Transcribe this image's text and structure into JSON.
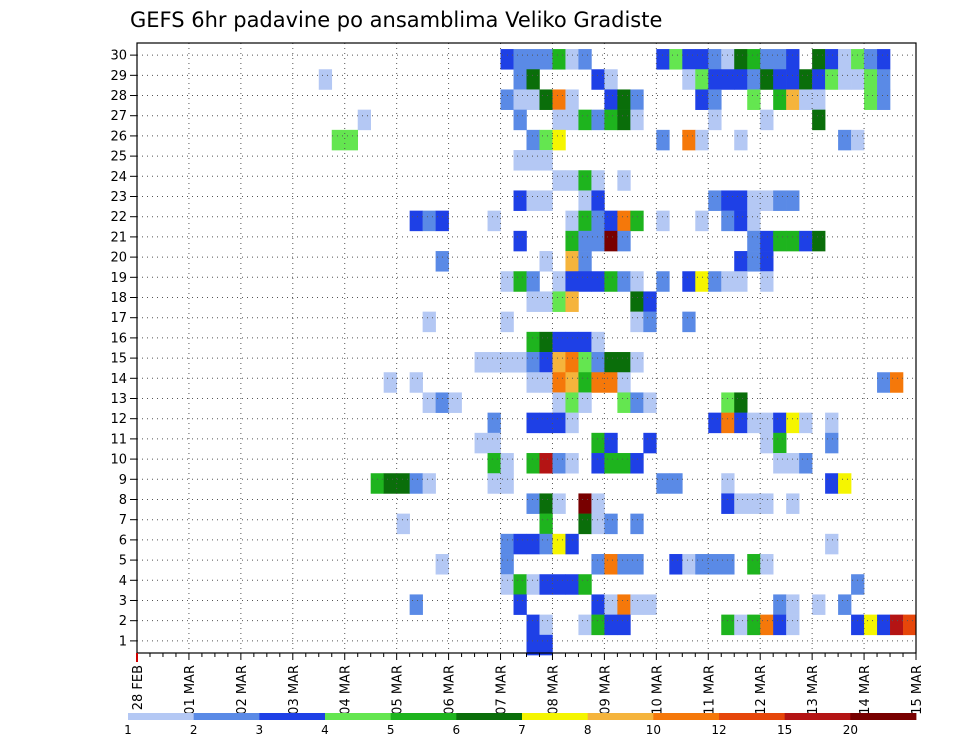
{
  "chart_data": {
    "type": "heatmap",
    "title": "GEFS 6hr padavine po ansamblima Veliko Gradiste",
    "xlabel": "",
    "ylabel": "",
    "x_tick_labels": [
      "28 FEB",
      "01 MAR",
      "02 MAR",
      "03 MAR",
      "04 MAR",
      "05 MAR",
      "06 MAR",
      "07 MAR",
      "08 MAR",
      "09 MAR",
      "10 MAR",
      "11 MAR",
      "12 MAR",
      "13 MAR",
      "14 MAR",
      "15 MAR"
    ],
    "y_tick_labels": [
      1,
      2,
      3,
      4,
      5,
      6,
      7,
      8,
      9,
      10,
      11,
      12,
      13,
      14,
      15,
      16,
      17,
      18,
      19,
      20,
      21,
      22,
      23,
      24,
      25,
      26,
      27,
      28,
      29,
      30
    ],
    "x_unit": "6-hour step from 28 FEB 00Z (4 steps per day)",
    "grid": true,
    "legend": "bottom",
    "color_scale": {
      "thresholds": [
        "1",
        "2",
        "3",
        "4",
        "5",
        "6",
        "7",
        "8",
        "10",
        "12",
        "15",
        "20"
      ],
      "colors": [
        "#b4c8f4",
        "#5a8ae6",
        "#1e40e6",
        "#64e650",
        "#1eb41e",
        "#0a6e0a",
        "#f5f500",
        "#f5b43c",
        "#f5780a",
        "#e6460a",
        "#b41414",
        "#780000"
      ]
    },
    "cells": [
      [
        0,
        29,
        2
      ],
      [
        1,
        29,
        1
      ],
      [
        2,
        29,
        1
      ],
      [
        3,
        29,
        1
      ],
      [
        4,
        29,
        4
      ],
      [
        5,
        29,
        0
      ],
      [
        6,
        29,
        1
      ],
      [
        12,
        29,
        2
      ],
      [
        13,
        29,
        3
      ],
      [
        14,
        29,
        2
      ],
      [
        15,
        29,
        2
      ],
      [
        16,
        29,
        1
      ],
      [
        17,
        29,
        0
      ],
      [
        18,
        29,
        5
      ],
      [
        19,
        29,
        4
      ],
      [
        20,
        29,
        1
      ],
      [
        21,
        29,
        1
      ],
      [
        22,
        29,
        2
      ],
      [
        24,
        29,
        5
      ],
      [
        25,
        29,
        2
      ],
      [
        26,
        29,
        0
      ],
      [
        27,
        29,
        3
      ],
      [
        28,
        29,
        1
      ],
      [
        29,
        29,
        2
      ],
      [
        -14,
        28,
        0
      ],
      [
        1,
        28,
        1
      ],
      [
        2,
        28,
        5
      ],
      [
        7,
        28,
        2
      ],
      [
        8,
        28,
        0
      ],
      [
        14,
        28,
        0
      ],
      [
        15,
        28,
        3
      ],
      [
        16,
        28,
        2
      ],
      [
        17,
        28,
        2
      ],
      [
        18,
        28,
        2
      ],
      [
        19,
        28,
        1
      ],
      [
        20,
        28,
        5
      ],
      [
        21,
        28,
        2
      ],
      [
        22,
        28,
        2
      ],
      [
        23,
        28,
        5
      ],
      [
        24,
        28,
        2
      ],
      [
        25,
        28,
        3
      ],
      [
        26,
        28,
        0
      ],
      [
        27,
        28,
        0
      ],
      [
        28,
        28,
        3
      ],
      [
        29,
        28,
        1
      ],
      [
        0,
        27,
        1
      ],
      [
        1,
        27,
        0
      ],
      [
        2,
        27,
        0
      ],
      [
        3,
        27,
        5
      ],
      [
        4,
        27,
        8
      ],
      [
        5,
        27,
        0
      ],
      [
        8,
        27,
        2
      ],
      [
        9,
        27,
        5
      ],
      [
        10,
        27,
        1
      ],
      [
        15,
        27,
        2
      ],
      [
        16,
        27,
        1
      ],
      [
        19,
        27,
        3
      ],
      [
        21,
        27,
        4
      ],
      [
        22,
        27,
        7
      ],
      [
        23,
        27,
        0
      ],
      [
        24,
        27,
        0
      ],
      [
        28,
        27,
        3
      ],
      [
        29,
        27,
        1
      ],
      [
        -11,
        26,
        0
      ],
      [
        1,
        26,
        1
      ],
      [
        4,
        26,
        0
      ],
      [
        5,
        26,
        0
      ],
      [
        6,
        26,
        4
      ],
      [
        7,
        26,
        1
      ],
      [
        8,
        26,
        4
      ],
      [
        9,
        26,
        5
      ],
      [
        10,
        26,
        0
      ],
      [
        16,
        26,
        0
      ],
      [
        20,
        26,
        0
      ],
      [
        24,
        26,
        5
      ],
      [
        -13,
        25,
        3
      ],
      [
        -12,
        25,
        3
      ],
      [
        2,
        25,
        1
      ],
      [
        3,
        25,
        3
      ],
      [
        4,
        25,
        6
      ],
      [
        12,
        25,
        1
      ],
      [
        14,
        25,
        8
      ],
      [
        15,
        25,
        0
      ],
      [
        18,
        25,
        0
      ],
      [
        26,
        25,
        1
      ],
      [
        27,
        25,
        0
      ],
      [
        1,
        24,
        0
      ],
      [
        2,
        24,
        0
      ],
      [
        3,
        24,
        0
      ],
      [
        4,
        23,
        0
      ],
      [
        5,
        23,
        0
      ],
      [
        6,
        23,
        4
      ],
      [
        7,
        23,
        0
      ],
      [
        9,
        23,
        0
      ],
      [
        1,
        22,
        2
      ],
      [
        2,
        22,
        0
      ],
      [
        3,
        22,
        0
      ],
      [
        6,
        22,
        0
      ],
      [
        7,
        22,
        2
      ],
      [
        16,
        22,
        1
      ],
      [
        17,
        22,
        2
      ],
      [
        18,
        22,
        2
      ],
      [
        19,
        22,
        0
      ],
      [
        20,
        22,
        0
      ],
      [
        21,
        22,
        1
      ],
      [
        22,
        22,
        1
      ],
      [
        -7,
        21,
        2
      ],
      [
        -6,
        21,
        1
      ],
      [
        -5,
        21,
        2
      ],
      [
        -1,
        21,
        0
      ],
      [
        5,
        21,
        0
      ],
      [
        6,
        21,
        4
      ],
      [
        7,
        21,
        1
      ],
      [
        8,
        21,
        2
      ],
      [
        9,
        21,
        8
      ],
      [
        10,
        21,
        4
      ],
      [
        12,
        21,
        0
      ],
      [
        15,
        21,
        0
      ],
      [
        17,
        21,
        1
      ],
      [
        18,
        21,
        2
      ],
      [
        19,
        21,
        0
      ],
      [
        1,
        20,
        2
      ],
      [
        5,
        20,
        4
      ],
      [
        6,
        20,
        1
      ],
      [
        7,
        20,
        1
      ],
      [
        8,
        20,
        11
      ],
      [
        9,
        20,
        1
      ],
      [
        19,
        20,
        1
      ],
      [
        20,
        20,
        2
      ],
      [
        21,
        20,
        4
      ],
      [
        22,
        20,
        4
      ],
      [
        23,
        20,
        2
      ],
      [
        24,
        20,
        5
      ],
      [
        -5,
        19,
        1
      ],
      [
        3,
        19,
        0
      ],
      [
        5,
        19,
        7
      ],
      [
        6,
        19,
        1
      ],
      [
        18,
        19,
        2
      ],
      [
        19,
        19,
        1
      ],
      [
        20,
        19,
        2
      ],
      [
        0,
        18,
        0
      ],
      [
        1,
        18,
        4
      ],
      [
        2,
        18,
        1
      ],
      [
        4,
        18,
        0
      ],
      [
        5,
        18,
        2
      ],
      [
        6,
        18,
        2
      ],
      [
        7,
        18,
        2
      ],
      [
        8,
        18,
        4
      ],
      [
        9,
        18,
        1
      ],
      [
        10,
        18,
        0
      ],
      [
        12,
        18,
        1
      ],
      [
        14,
        18,
        2
      ],
      [
        15,
        18,
        6
      ],
      [
        16,
        18,
        1
      ],
      [
        17,
        18,
        0
      ],
      [
        18,
        18,
        0
      ],
      [
        20,
        18,
        0
      ],
      [
        2,
        17,
        0
      ],
      [
        3,
        17,
        0
      ],
      [
        4,
        17,
        3
      ],
      [
        5,
        17,
        7
      ],
      [
        10,
        17,
        5
      ],
      [
        11,
        17,
        2
      ],
      [
        -6,
        16,
        0
      ],
      [
        0,
        16,
        0
      ],
      [
        10,
        16,
        0
      ],
      [
        11,
        16,
        1
      ],
      [
        14,
        16,
        1
      ],
      [
        2,
        15,
        4
      ],
      [
        3,
        15,
        5
      ],
      [
        4,
        15,
        2
      ],
      [
        5,
        15,
        2
      ],
      [
        6,
        15,
        2
      ],
      [
        7,
        15,
        0
      ],
      [
        -2,
        14,
        0
      ],
      [
        -1,
        14,
        0
      ],
      [
        0,
        14,
        0
      ],
      [
        1,
        14,
        0
      ],
      [
        2,
        14,
        1
      ],
      [
        3,
        14,
        2
      ],
      [
        4,
        14,
        7
      ],
      [
        5,
        14,
        8
      ],
      [
        6,
        14,
        3
      ],
      [
        7,
        14,
        1
      ],
      [
        8,
        14,
        5
      ],
      [
        9,
        14,
        5
      ],
      [
        10,
        14,
        0
      ],
      [
        -9,
        13,
        0
      ],
      [
        -7,
        13,
        0
      ],
      [
        2,
        13,
        0
      ],
      [
        3,
        13,
        0
      ],
      [
        4,
        13,
        8
      ],
      [
        5,
        13,
        7
      ],
      [
        6,
        13,
        4
      ],
      [
        7,
        13,
        8
      ],
      [
        8,
        13,
        8
      ],
      [
        9,
        13,
        0
      ],
      [
        29,
        13,
        1
      ],
      [
        30,
        13,
        8
      ],
      [
        -6,
        12,
        0
      ],
      [
        -5,
        12,
        1
      ],
      [
        -4,
        12,
        0
      ],
      [
        4,
        12,
        0
      ],
      [
        5,
        12,
        3
      ],
      [
        6,
        12,
        0
      ],
      [
        9,
        12,
        3
      ],
      [
        10,
        12,
        1
      ],
      [
        11,
        12,
        0
      ],
      [
        17,
        12,
        3
      ],
      [
        18,
        12,
        5
      ],
      [
        -1,
        11,
        1
      ],
      [
        2,
        11,
        2
      ],
      [
        3,
        11,
        2
      ],
      [
        4,
        11,
        2
      ],
      [
        5,
        11,
        0
      ],
      [
        16,
        11,
        2
      ],
      [
        17,
        11,
        8
      ],
      [
        18,
        11,
        2
      ],
      [
        19,
        11,
        0
      ],
      [
        20,
        11,
        0
      ],
      [
        21,
        11,
        2
      ],
      [
        22,
        11,
        6
      ],
      [
        23,
        11,
        0
      ],
      [
        25,
        11,
        0
      ],
      [
        -2,
        10,
        0
      ],
      [
        -1,
        10,
        0
      ],
      [
        7,
        10,
        4
      ],
      [
        8,
        10,
        2
      ],
      [
        11,
        10,
        2
      ],
      [
        20,
        10,
        0
      ],
      [
        21,
        10,
        4
      ],
      [
        25,
        10,
        1
      ],
      [
        -1,
        9,
        4
      ],
      [
        0,
        9,
        0
      ],
      [
        2,
        9,
        4
      ],
      [
        3,
        9,
        10
      ],
      [
        4,
        9,
        1
      ],
      [
        5,
        9,
        0
      ],
      [
        7,
        9,
        2
      ],
      [
        8,
        9,
        4
      ],
      [
        9,
        9,
        4
      ],
      [
        10,
        9,
        2
      ],
      [
        21,
        9,
        0
      ],
      [
        22,
        9,
        0
      ],
      [
        23,
        9,
        1
      ],
      [
        -10,
        8,
        4
      ],
      [
        -9,
        8,
        5
      ],
      [
        -8,
        8,
        5
      ],
      [
        -7,
        8,
        1
      ],
      [
        -6,
        8,
        0
      ],
      [
        -1,
        8,
        0
      ],
      [
        0,
        8,
        0
      ],
      [
        12,
        8,
        1
      ],
      [
        13,
        8,
        1
      ],
      [
        17,
        8,
        0
      ],
      [
        25,
        8,
        2
      ],
      [
        26,
        8,
        6
      ],
      [
        2,
        7,
        1
      ],
      [
        3,
        7,
        5
      ],
      [
        4,
        7,
        0
      ],
      [
        6,
        7,
        11
      ],
      [
        7,
        7,
        0
      ],
      [
        17,
        7,
        2
      ],
      [
        18,
        7,
        0
      ],
      [
        19,
        7,
        0
      ],
      [
        20,
        7,
        0
      ],
      [
        22,
        7,
        0
      ],
      [
        -8,
        6,
        0
      ],
      [
        3,
        6,
        4
      ],
      [
        6,
        6,
        5
      ],
      [
        7,
        6,
        0
      ],
      [
        8,
        6,
        1
      ],
      [
        10,
        6,
        1
      ],
      [
        0,
        5,
        1
      ],
      [
        1,
        5,
        2
      ],
      [
        2,
        5,
        2
      ],
      [
        3,
        5,
        1
      ],
      [
        4,
        5,
        6
      ],
      [
        5,
        5,
        2
      ],
      [
        25,
        5,
        0
      ],
      [
        -5,
        4,
        0
      ],
      [
        0,
        4,
        1
      ],
      [
        7,
        4,
        1
      ],
      [
        8,
        4,
        8
      ],
      [
        9,
        4,
        1
      ],
      [
        10,
        4,
        1
      ],
      [
        13,
        4,
        2
      ],
      [
        14,
        4,
        0
      ],
      [
        15,
        4,
        1
      ],
      [
        16,
        4,
        1
      ],
      [
        17,
        4,
        1
      ],
      [
        19,
        4,
        4
      ],
      [
        20,
        4,
        0
      ],
      [
        0,
        3,
        0
      ],
      [
        1,
        3,
        4
      ],
      [
        2,
        3,
        0
      ],
      [
        3,
        3,
        2
      ],
      [
        4,
        3,
        2
      ],
      [
        5,
        3,
        2
      ],
      [
        6,
        3,
        4
      ],
      [
        27,
        3,
        1
      ],
      [
        -7,
        2,
        1
      ],
      [
        1,
        2,
        2
      ],
      [
        7,
        2,
        2
      ],
      [
        8,
        2,
        0
      ],
      [
        9,
        2,
        8
      ],
      [
        10,
        2,
        0
      ],
      [
        11,
        2,
        0
      ],
      [
        21,
        2,
        1
      ],
      [
        22,
        2,
        0
      ],
      [
        24,
        2,
        0
      ],
      [
        26,
        2,
        1
      ],
      [
        2,
        1,
        2
      ],
      [
        3,
        1,
        0
      ],
      [
        6,
        1,
        0
      ],
      [
        7,
        1,
        4
      ],
      [
        8,
        1,
        2
      ],
      [
        9,
        1,
        2
      ],
      [
        17,
        1,
        4
      ],
      [
        18,
        1,
        0
      ],
      [
        19,
        1,
        4
      ],
      [
        20,
        1,
        8
      ],
      [
        21,
        1,
        2
      ],
      [
        22,
        1,
        0
      ],
      [
        27,
        1,
        2
      ],
      [
        28,
        1,
        6
      ],
      [
        29,
        1,
        2
      ],
      [
        30,
        1,
        10
      ],
      [
        31,
        1,
        9
      ],
      [
        2,
        0,
        2
      ],
      [
        3,
        0,
        2
      ]
    ],
    "cells_format": "[x_step_from_07MAR_00Z, member_row_index_0_is_below_row1, color_class_index]"
  }
}
